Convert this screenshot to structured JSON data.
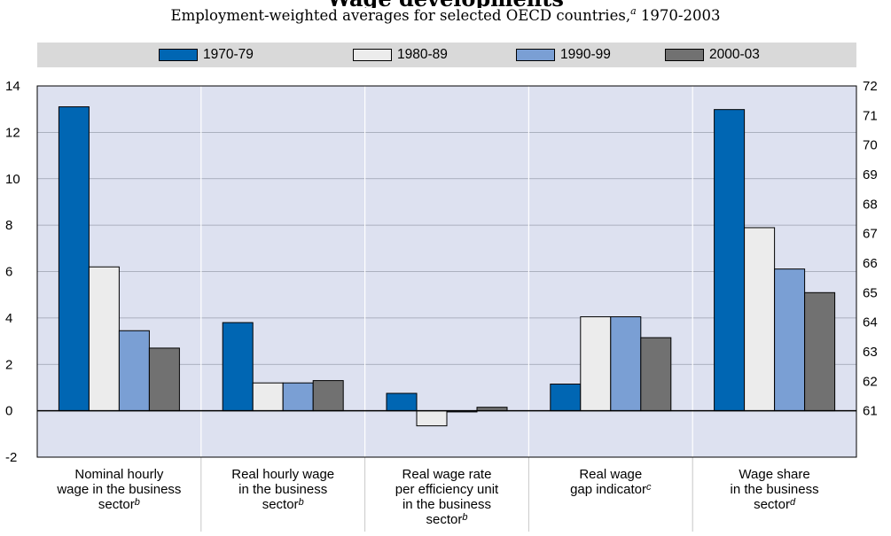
{
  "header": {
    "title": "Wage developments",
    "subtitle_main": "Employment-weighted averages for selected OECD countries,",
    "subtitle_note": "a",
    "subtitle_years": "1970-2003"
  },
  "colors": {
    "panel_bg": "#dde1f0",
    "legend_bg": "#d9d9d9",
    "series": [
      "#0066b3",
      "#ececec",
      "#7a9fd4",
      "#717171"
    ]
  },
  "chart_data": {
    "type": "bar",
    "title": "Wage developments",
    "subtitle": "Employment-weighted averages for selected OECD countries, 1970-2003",
    "legend_position": "top",
    "grid": true,
    "categories": [
      {
        "lines": [
          "Nominal hourly",
          "wage in the business",
          "sector"
        ],
        "note": "b"
      },
      {
        "lines": [
          "Real hourly wage",
          "in the business",
          "sector"
        ],
        "note": "b"
      },
      {
        "lines": [
          "Real wage rate",
          "per efficiency unit",
          "in the business",
          "sector"
        ],
        "note": "b"
      },
      {
        "lines": [
          "Real wage",
          "gap indicator"
        ],
        "note": "c"
      },
      {
        "lines": [
          "Wage share",
          "in the business",
          "sector"
        ],
        "note": "d"
      }
    ],
    "series": [
      {
        "name": "1970-79",
        "values": [
          13.1,
          3.8,
          0.75,
          1.15,
          71.2
        ]
      },
      {
        "name": "1980-89",
        "values": [
          6.2,
          1.2,
          -0.65,
          4.05,
          67.2
        ]
      },
      {
        "name": "1990-99",
        "values": [
          3.45,
          1.2,
          -0.05,
          4.05,
          65.8
        ]
      },
      {
        "name": "2000-03",
        "values": [
          2.7,
          1.3,
          0.15,
          3.15,
          65.0
        ]
      }
    ],
    "axis_assignment": [
      "left",
      "left",
      "left",
      "left",
      "right"
    ],
    "left_axis": {
      "ylim": [
        -2,
        14
      ],
      "ticks": [
        -2,
        0,
        2,
        4,
        6,
        8,
        10,
        12,
        14
      ]
    },
    "right_axis": {
      "ylim": [
        61,
        72
      ],
      "ticks": [
        61,
        62,
        63,
        64,
        65,
        66,
        67,
        68,
        69,
        70,
        71,
        72
      ]
    }
  }
}
